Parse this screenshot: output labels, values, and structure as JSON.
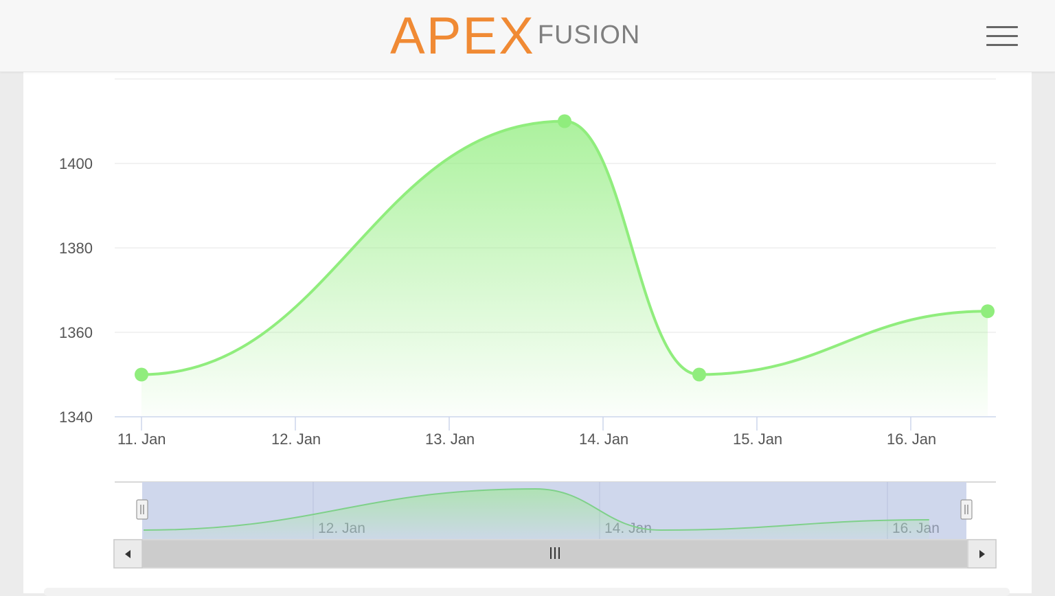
{
  "header": {
    "logo_main": "APEX",
    "logo_sub": "FUSION",
    "menu_icon": "hamburger-menu-icon"
  },
  "colors": {
    "brand": "#f08a34",
    "series": "#90ed7d",
    "navigator_mask": "#cfd7ec",
    "scrollbar": "#cccccc"
  },
  "chart_data": {
    "type": "area",
    "series": [
      {
        "x": [
          "2024-01-11",
          "2024-01-13 18:00",
          "2024-01-14 15:00",
          "2024-01-16 12:00"
        ],
        "values": [
          1350,
          1410,
          1350,
          1365
        ]
      }
    ],
    "xaxis_ticks": [
      "11. Jan",
      "12. Jan",
      "13. Jan",
      "14. Jan",
      "15. Jan",
      "16. Jan"
    ],
    "yaxis_ticks": [
      "1340",
      "1360",
      "1380",
      "1400"
    ],
    "ylim": [
      1340,
      1420
    ],
    "grid": true,
    "navigator": {
      "ticks": [
        "12. Jan",
        "14. Jan",
        "16. Jan"
      ]
    }
  }
}
